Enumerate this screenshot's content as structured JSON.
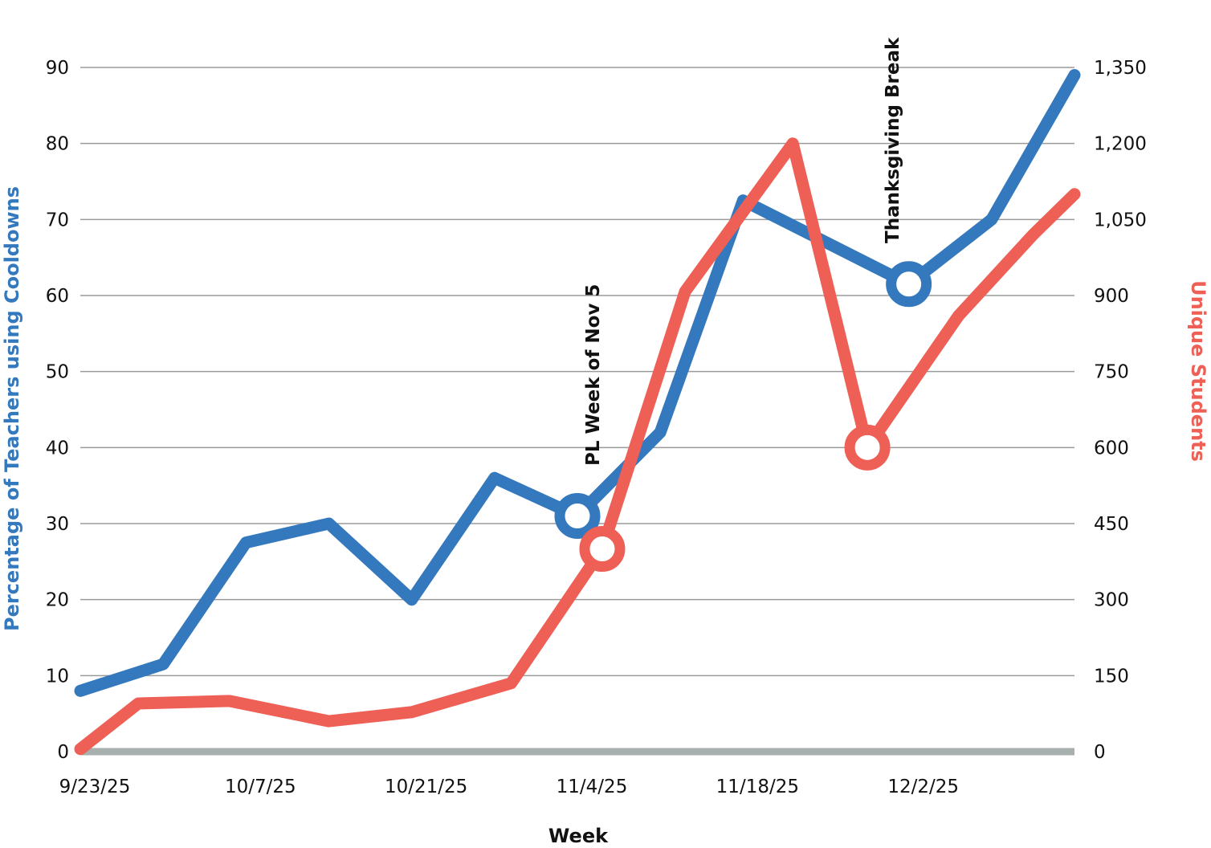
{
  "chart_data": {
    "type": "line",
    "categories": [
      "9/23/25",
      "",
      "10/7/25",
      "",
      "10/21/25",
      "",
      "11/4/25",
      "",
      "11/18/25",
      "",
      "12/2/25",
      "",
      ""
    ],
    "x_tick_labels": [
      "9/23/25",
      "10/7/25",
      "10/21/25",
      "11/4/25",
      "11/18/25",
      "12/2/25"
    ],
    "xlabel": "Week",
    "ylabel_left": "Percentage of Teachers using Cooldowns",
    "ylabel_right": "Unique Students",
    "ylim_left": [
      0,
      90
    ],
    "ylim_right": [
      0,
      1350
    ],
    "y_ticks_left": [
      "0",
      "10",
      "20",
      "30",
      "40",
      "50",
      "60",
      "70",
      "80",
      "90"
    ],
    "y_ticks_right": [
      "0",
      "150",
      "300",
      "450",
      "600",
      "750",
      "900",
      "1,050",
      "1,200",
      "1,350"
    ],
    "grid": true,
    "series": [
      {
        "axis": "left",
        "color": "#3478bd",
        "x": [
          0,
          1,
          2,
          3,
          4,
          5,
          6,
          7,
          8,
          9,
          10,
          11,
          12
        ],
        "values": [
          8,
          11.5,
          27.5,
          30,
          20,
          36,
          31,
          42,
          72.5,
          67,
          61.5,
          70,
          89
        ],
        "highlight_points": [
          6,
          10
        ]
      },
      {
        "axis": "right",
        "color": "#ee5f55",
        "x": [
          0,
          0.7,
          1.8,
          3,
          4,
          5.2,
          6.3,
          7.3,
          8.6,
          9.5,
          10.6,
          11.5,
          12
        ],
        "values": [
          5,
          95,
          100,
          60,
          78,
          135,
          400,
          908,
          1200,
          600,
          860,
          1020,
          1100
        ],
        "highlight_points": [
          6,
          9
        ]
      }
    ],
    "annotations": [
      {
        "text": "PL Week of Nov 5",
        "x_index": 6
      },
      {
        "text": "Thanksgiving Break",
        "x_index": 10
      }
    ]
  }
}
